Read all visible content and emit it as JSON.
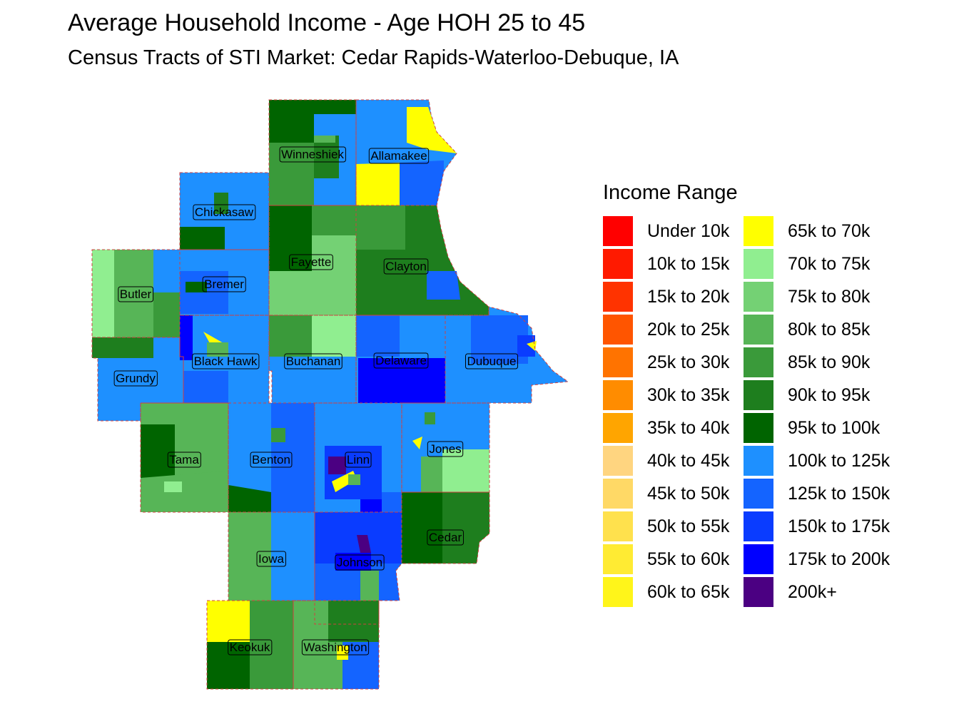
{
  "title": "Average Household Income - Age HOH 25 to 45",
  "subtitle": "Census Tracts of STI Market: Cedar Rapids-Waterloo-Debuque, IA",
  "legend": {
    "title": "Income Range",
    "items": [
      {
        "label": "Under 10k",
        "color": "#ff0000"
      },
      {
        "label": "10k to 15k",
        "color": "#ff1a00"
      },
      {
        "label": "15k to 20k",
        "color": "#ff3300"
      },
      {
        "label": "20k to 25k",
        "color": "#ff5500"
      },
      {
        "label": "25k to 30k",
        "color": "#ff7300"
      },
      {
        "label": "30k to 35k",
        "color": "#ff8c00"
      },
      {
        "label": "35k to 40k",
        "color": "#ffa500"
      },
      {
        "label": "40k to 45k",
        "color": "#ffd580"
      },
      {
        "label": "45k to 50k",
        "color": "#ffd966"
      },
      {
        "label": "50k to 55k",
        "color": "#ffe14d"
      },
      {
        "label": "55k to 60k",
        "color": "#ffeb33"
      },
      {
        "label": "60k to 65k",
        "color": "#fff51a"
      },
      {
        "label": "65k to 70k",
        "color": "#ffff00"
      },
      {
        "label": "70k to 75k",
        "color": "#90ee90"
      },
      {
        "label": "75k to 80k",
        "color": "#74d174"
      },
      {
        "label": "80k to 85k",
        "color": "#57b557"
      },
      {
        "label": "85k to 90k",
        "color": "#3a9a3a"
      },
      {
        "label": "90k to 95k",
        "color": "#1e7e1e"
      },
      {
        "label": "95k to 100k",
        "color": "#006400"
      },
      {
        "label": "100k to 125k",
        "color": "#1e90ff"
      },
      {
        "label": "125k to 150k",
        "color": "#1464ff"
      },
      {
        "label": "150k to 175k",
        "color": "#0a3cff"
      },
      {
        "label": "175k to 200k",
        "color": "#0000ff"
      },
      {
        "label": "200k+",
        "color": "#4b0082"
      }
    ]
  },
  "counties": [
    {
      "name": "Winneshiek",
      "range": "100k to 125k"
    },
    {
      "name": "Allamakee",
      "range": "100k to 125k"
    },
    {
      "name": "Chickasaw",
      "range": "100k to 125k"
    },
    {
      "name": "Fayette",
      "range": "75k to 80k"
    },
    {
      "name": "Clayton",
      "range": "90k to 95k"
    },
    {
      "name": "Butler",
      "range": "100k to 125k"
    },
    {
      "name": "Bremer",
      "range": "100k to 125k"
    },
    {
      "name": "Black Hawk",
      "range": "100k to 125k"
    },
    {
      "name": "Buchanan",
      "range": "100k to 125k"
    },
    {
      "name": "Delaware",
      "range": "100k to 125k"
    },
    {
      "name": "Dubuque",
      "range": "100k to 125k"
    },
    {
      "name": "Grundy",
      "range": "100k to 125k"
    },
    {
      "name": "Tama",
      "range": "80k to 85k"
    },
    {
      "name": "Benton",
      "range": "100k to 125k"
    },
    {
      "name": "Linn",
      "range": "100k to 125k"
    },
    {
      "name": "Jones",
      "range": "100k to 125k"
    },
    {
      "name": "Cedar",
      "range": "90k to 95k"
    },
    {
      "name": "Iowa",
      "range": "100k to 125k"
    },
    {
      "name": "Johnson",
      "range": "125k to 150k"
    },
    {
      "name": "Keokuk",
      "range": "85k to 90k"
    },
    {
      "name": "Washington",
      "range": "80k to 85k"
    }
  ]
}
